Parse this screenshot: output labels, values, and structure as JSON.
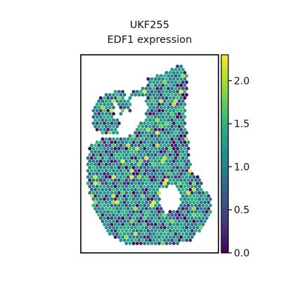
{
  "chart_data": {
    "type": "spatial-scatter",
    "title": "UKF255",
    "subtitle": "EDF1 expression",
    "xlabel": "",
    "ylabel": "",
    "colorbar": {
      "colormap": "viridis",
      "min": 0.0,
      "max": 2.3,
      "ticks": [
        0.0,
        0.5,
        1.0,
        1.5,
        2.0
      ],
      "tick_labels": [
        "0.0",
        "0.5",
        "1.0",
        "1.5",
        "2.0"
      ],
      "placement": "right"
    },
    "spot_summary": {
      "approx_spot_count": 1800,
      "dominant_value_range": [
        0.8,
        1.5
      ],
      "low_value_pockets": [
        0.0,
        0.3
      ],
      "high_value_outliers": [
        1.8,
        2.3
      ]
    },
    "frame": true,
    "grid": false
  }
}
